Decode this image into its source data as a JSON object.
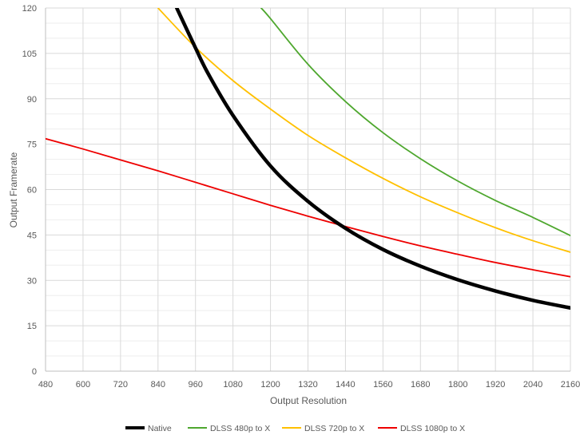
{
  "chart_data": {
    "type": "line",
    "title": "",
    "xlabel": "Output Resolution",
    "ylabel": "Output Framerate",
    "xlim": [
      480,
      2160
    ],
    "ylim": [
      0,
      120
    ],
    "x_ticks": [
      480,
      600,
      720,
      840,
      960,
      1080,
      1200,
      1320,
      1440,
      1560,
      1680,
      1800,
      1920,
      2040,
      2160
    ],
    "y_ticks": [
      0,
      15,
      30,
      45,
      60,
      75,
      90,
      105,
      120
    ],
    "x_tick_labels": [
      "480",
      "600",
      "720",
      "840",
      "960",
      "1080",
      "1200",
      "1320",
      "1440",
      "1560",
      "1680",
      "1800",
      "1920",
      "2040",
      "2160"
    ],
    "y_tick_labels": [
      "0",
      "15",
      "30",
      "45",
      "60",
      "75",
      "90",
      "105",
      "120"
    ],
    "grid": true,
    "legend_position": "bottom",
    "series": [
      {
        "name": "Native",
        "color": "#000000",
        "width": "thick",
        "x": [
          900,
          960,
          1000,
          1080,
          1200,
          1320,
          1440,
          1560,
          1680,
          1800,
          1920,
          2040,
          2160
        ],
        "values": [
          120,
          106.8,
          98.4,
          84.5,
          67.8,
          56.1,
          47.2,
          40.2,
          34.7,
          30.2,
          26.5,
          23.4,
          20.9
        ]
      },
      {
        "name": "DLSS 480p to X",
        "color": "#4EA72E",
        "width": "normal",
        "x": [
          1170,
          1200,
          1320,
          1440,
          1560,
          1680,
          1800,
          1920,
          2040,
          2160
        ],
        "values": [
          120,
          116.5,
          101.4,
          89.1,
          78.8,
          70.2,
          62.8,
          56.4,
          50.8,
          44.8
        ]
      },
      {
        "name": "DLSS 720p to X",
        "color": "#FFC000",
        "width": "normal",
        "x": [
          840,
          960,
          1080,
          1200,
          1320,
          1440,
          1560,
          1680,
          1800,
          1920,
          2040,
          2160
        ],
        "values": [
          120,
          107.0,
          96.0,
          86.6,
          77.9,
          70.5,
          63.7,
          57.6,
          52.3,
          47.4,
          43.1,
          39.3
        ]
      },
      {
        "name": "DLSS 1080p to X",
        "color": "#EE0000",
        "width": "normal",
        "x": [
          480,
          600,
          720,
          840,
          960,
          1080,
          1200,
          1320,
          1440,
          1560,
          1680,
          1800,
          1920,
          2040,
          2160
        ],
        "values": [
          76.8,
          73.4,
          69.8,
          66.2,
          62.4,
          58.6,
          54.8,
          51.2,
          47.8,
          44.5,
          41.4,
          38.6,
          35.9,
          33.5,
          31.2
        ]
      }
    ]
  }
}
